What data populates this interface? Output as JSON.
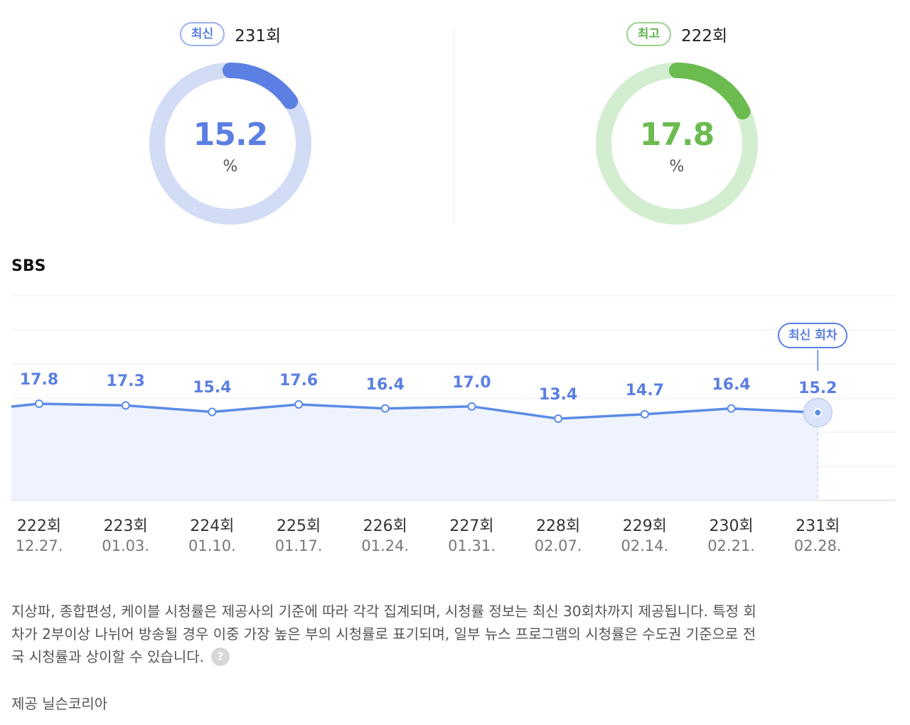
{
  "latest": {
    "badge": "최신",
    "episode": "231회",
    "rating": "15.2",
    "unit": "%",
    "value": 15.2,
    "color": "#5b7fe2",
    "track_color": "#d3dcf5"
  },
  "best": {
    "badge": "최고",
    "episode": "222회",
    "rating": "17.8",
    "unit": "%",
    "value": 17.8,
    "color": "#6cbb4f",
    "track_color": "#d3edd0"
  },
  "chart_data": {
    "type": "line",
    "title": "SBS",
    "categories": [
      "222회",
      "223회",
      "224회",
      "225회",
      "226회",
      "227회",
      "228회",
      "229회",
      "230회",
      "231회"
    ],
    "dates": [
      "12.27.",
      "01.03.",
      "01.10.",
      "01.17.",
      "01.24.",
      "01.31.",
      "02.07.",
      "02.14.",
      "02.21.",
      "02.28."
    ],
    "series": [
      {
        "values": [
          17.8,
          17.3,
          15.4,
          17.6,
          16.4,
          17.0,
          13.4,
          14.7,
          16.4,
          15.2
        ],
        "labels": [
          "17.8",
          "17.3",
          "15.4",
          "17.6",
          "16.4",
          "17.0",
          "13.4",
          "14.7",
          "16.4",
          "15.2"
        ],
        "color": "#5b8ce6",
        "fill": "#eff3fd"
      }
    ],
    "highlight": {
      "index": 9,
      "label": "최신 회차"
    },
    "grid": true,
    "legend": "none"
  },
  "notice": {
    "line1": "지상파, 종합편성, 케이블 시청률은 제공사의 기준에 따라 각각 집계되며, 시청률 정보는 최신 30회차까지 제공됩니다. 특정 회",
    "line2": "차가 2부이상 나뉘어 방송될 경우 이중 가장 높은 부의 시청률로 표기되며, 일부 뉴스 프로그램의 시청률은 수도권 기준으로 전",
    "line3": "국 시청률과 상이할 수 있습니다.",
    "help_glyph": "?"
  },
  "provider": "제공 닐슨코리아"
}
